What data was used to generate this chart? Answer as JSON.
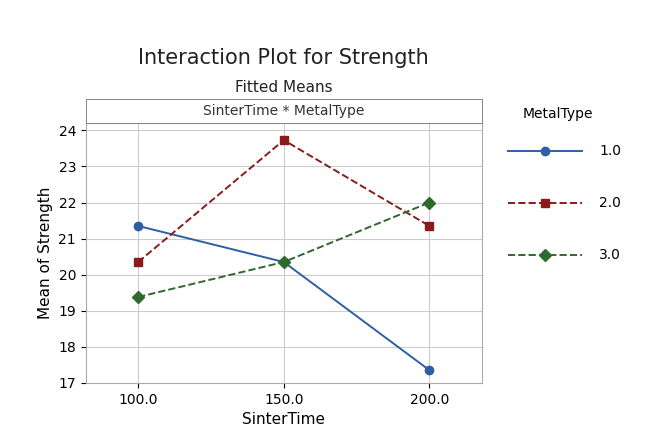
{
  "title": "Interaction Plot for Strength",
  "subtitle": "Fitted Means",
  "panel_label": "SinterTime * MetalType",
  "xlabel": "SinterTime",
  "ylabel": "Mean of Strength",
  "x": [
    100.0,
    150.0,
    200.0
  ],
  "series": [
    {
      "label": "1.0",
      "y": [
        21.35,
        20.35,
        17.35
      ],
      "color": "#2e5fa3",
      "linestyle": "-",
      "marker": "o",
      "markersize": 6,
      "markerfacecolor": "#2e5fa3"
    },
    {
      "label": "2.0",
      "y": [
        20.35,
        23.73,
        21.35
      ],
      "color": "#8b1a1a",
      "linestyle": "--",
      "marker": "s",
      "markersize": 6,
      "markerfacecolor": "#8b1a1a"
    },
    {
      "label": "3.0",
      "y": [
        19.38,
        20.35,
        22.0
      ],
      "color": "#2d6a2d",
      "linestyle": "--",
      "marker": "D",
      "markersize": 6,
      "markerfacecolor": "#2d6a2d"
    }
  ],
  "ylim": [
    17,
    24.2
  ],
  "yticks": [
    17,
    18,
    19,
    20,
    21,
    22,
    23,
    24
  ],
  "xticks": [
    100.0,
    150.0,
    200.0
  ],
  "legend_title": "MetalType",
  "background_color": "#ffffff",
  "panel_background": "#ffffff",
  "grid_color": "#cccccc",
  "title_fontsize": 15,
  "subtitle_fontsize": 11,
  "label_fontsize": 11,
  "tick_fontsize": 10,
  "legend_fontsize": 10
}
